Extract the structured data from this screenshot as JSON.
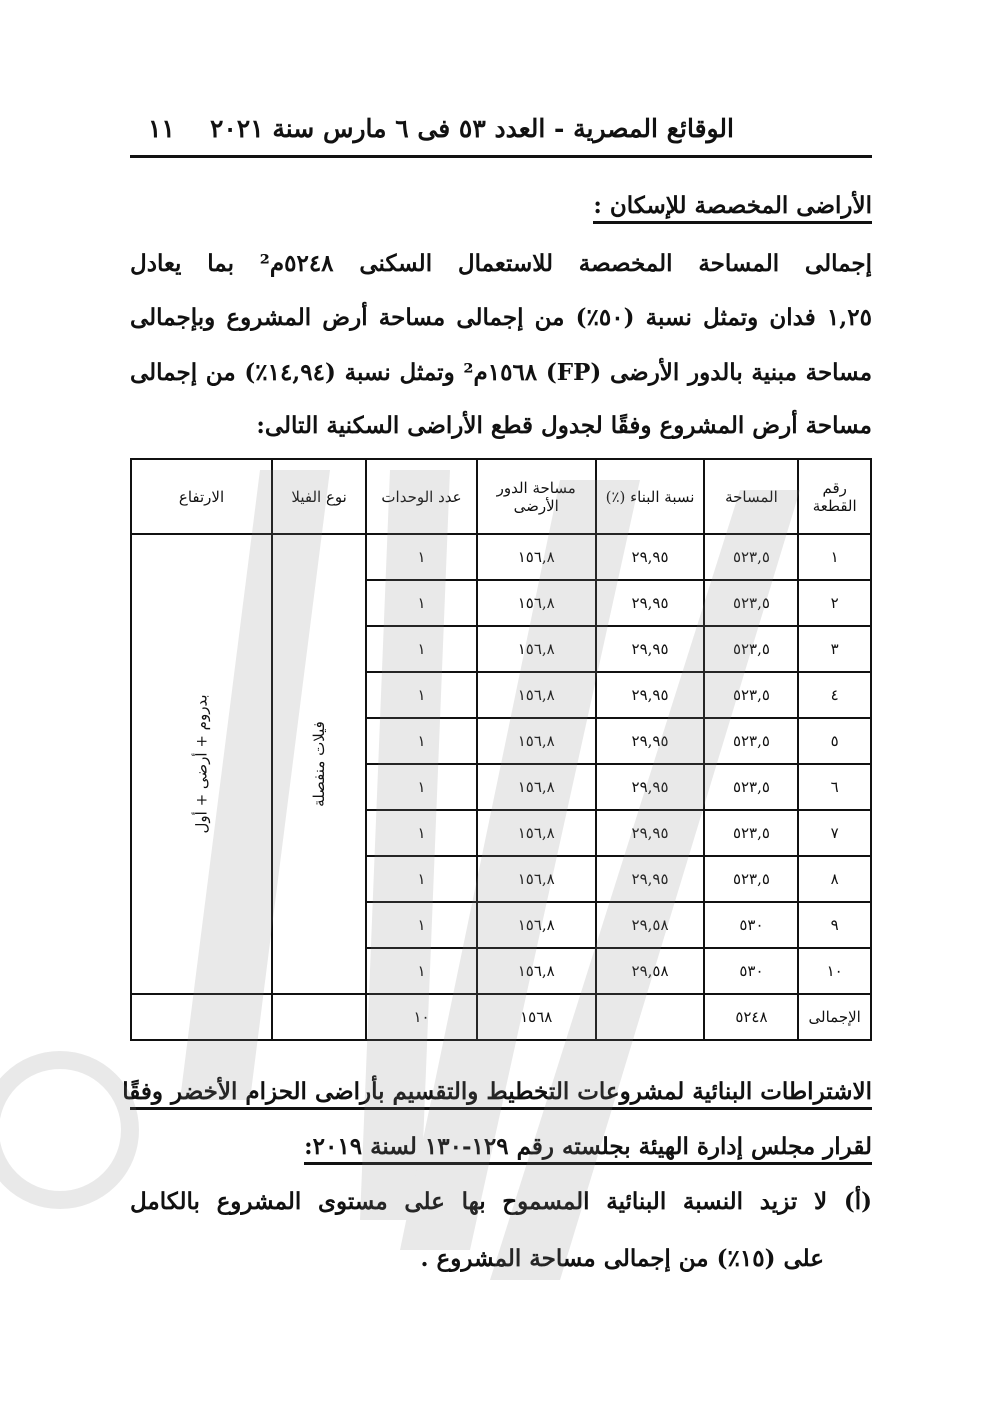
{
  "header": {
    "title": "الوقائع المصرية - العدد ٥٣ فى ٦ مارس سنة ٢٠٢١",
    "page_number": "١١"
  },
  "section1": {
    "heading": "الأراضى المخصصة للإسكان :",
    "lines": [
      "إجمالى المساحة المخصصة للاستعمال السكنى ٥٢٤٨م² بما يعادل",
      "١,٢٥ فدان وتمثل نسبة (٥٠٪) من إجمالى مساحة أرض المشروع وبإجمالى",
      "مساحة مبنية بالدور الأرضى (FP) ١٥٦٨م² وتمثل نسبة (١٤,٩٤٪) من إجمالى",
      "مساحة أرض المشروع وفقًا لجدول قطع الأراضى السكنية التالى:"
    ]
  },
  "table": {
    "headers": [
      "رقم القطعة",
      "المساحة",
      "نسبة البناء (٪)",
      "مساحة الدور الأرضى",
      "عدد الوحدات",
      "نوع الفيلا",
      "الارتفاع"
    ],
    "rows": [
      [
        "١",
        "٥٢٣,٥",
        "٢٩,٩٥",
        "١٥٦,٨",
        "١"
      ],
      [
        "٢",
        "٥٢٣,٥",
        "٢٩,٩٥",
        "١٥٦,٨",
        "١"
      ],
      [
        "٣",
        "٥٢٣,٥",
        "٢٩,٩٥",
        "١٥٦,٨",
        "١"
      ],
      [
        "٤",
        "٥٢٣,٥",
        "٢٩,٩٥",
        "١٥٦,٨",
        "١"
      ],
      [
        "٥",
        "٥٢٣,٥",
        "٢٩,٩٥",
        "١٥٦,٨",
        "١"
      ],
      [
        "٦",
        "٥٢٣,٥",
        "٢٩,٩٥",
        "١٥٦,٨",
        "١"
      ],
      [
        "٧",
        "٥٢٣,٥",
        "٢٩,٩٥",
        "١٥٦,٨",
        "١"
      ],
      [
        "٨",
        "٥٢٣,٥",
        "٢٩,٩٥",
        "١٥٦,٨",
        "١"
      ],
      [
        "٩",
        "٥٣٠",
        "٢٩,٥٨",
        "١٥٦,٨",
        "١"
      ],
      [
        "١٠",
        "٥٣٠",
        "٢٩,٥٨",
        "١٥٦,٨",
        "١"
      ]
    ],
    "villa_type": "فيلات منفصلة",
    "height": "بدروم + أرضى + أول",
    "total": {
      "label": "الإجمالى",
      "area": "٥٢٤٨",
      "ground_floor": "١٥٦٨",
      "units": "١٠"
    }
  },
  "section2": {
    "heading_line1": "الاشتراطات البنائية لمشروعات التخطيط والتقسيم بأراضى الحزام الأخضر وفقًا",
    "heading_line2": "لقرار مجلس إدارة الهيئة بجلسته رقم ١٢٩-١٣٠ لسنة ٢٠١٩:",
    "item_a_line1": "(أ) لا تزيد النسبة البنائية المسموح بها على مستوى المشروع بالكامل",
    "item_a_line2": "على (١٥٪) من إجمالى مساحة المشروع ."
  }
}
